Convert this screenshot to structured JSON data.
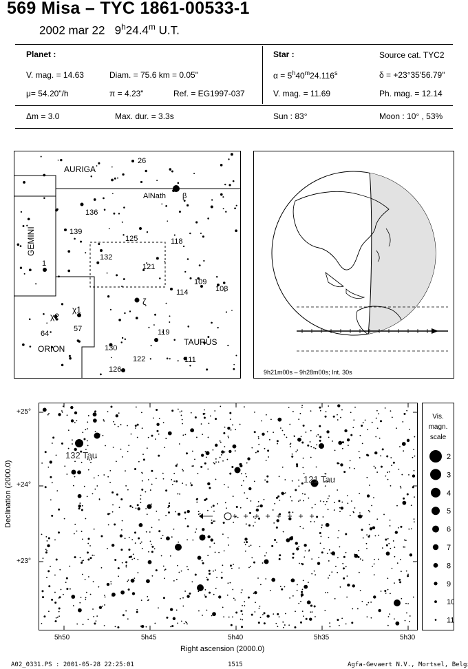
{
  "header": {
    "title": "569 Misa  –  TYC 1861-00533-1",
    "date": "2002 mar 22",
    "time_h": "9",
    "time_h_sup": "h",
    "time_m": "24.4",
    "time_m_sup": "m",
    "time_unit": "U.T."
  },
  "planet": {
    "heading": "Planet :",
    "vmag": "V. mag. = 14.63",
    "diam": "Diam. = 75.6 km = 0.05\"",
    "mu": "μ=  54.20\"/h",
    "pi": "π =  4.23\"",
    "ref": "Ref. = EG1997-037",
    "dm": "Δm = 3.0",
    "maxdur": "Max. dur. = 3.3s"
  },
  "star": {
    "heading": "Star :",
    "source": "Source cat.  TYC2",
    "alpha": "α =  5",
    "alpha_h": "h",
    "alpha_mid": "40",
    "alpha_m": "m",
    "alpha_s": "24.116",
    "alpha_ss": "s",
    "delta": "δ = +23°35'56.79\"",
    "vmag": "V. mag. = 11.69",
    "phmag": "Ph. mag. = 12.14",
    "sun": "Sun :  83°",
    "moon": "Moon :  10° , 53%"
  },
  "finder": {
    "constellations": [
      "AURIGA",
      "GEMINI",
      "ORION",
      "TAURUS"
    ],
    "labels": [
      "26",
      "AlNath",
      "β",
      "136",
      "139",
      "125",
      "118",
      "132",
      "121",
      "1",
      "109",
      "108",
      "114",
      "ζ",
      "χ2",
      "χ1",
      "64",
      "57",
      "119",
      "130",
      "122",
      "111",
      "126"
    ]
  },
  "globe": {
    "caption": "9h21m00s –  9h28m00s; Int. 30s"
  },
  "chart": {
    "dec_ticks": [
      "+25°",
      "+24°",
      "+23°"
    ],
    "ra_ticks": [
      "5h50",
      "5h45",
      "5h40",
      "5h35",
      "5h30"
    ],
    "ylabel": "Declination (2000.0)",
    "xlabel": "Right ascension (2000.0)",
    "star_labels": [
      "132 Tau",
      "121 Tau"
    ]
  },
  "scale": {
    "title_lines": [
      "Vis.",
      "magn.",
      "scale"
    ],
    "mags": [
      "2",
      "3",
      "4",
      "5",
      "6",
      "7",
      "8",
      "9",
      "10",
      "11"
    ]
  },
  "footer": {
    "file": "A02_0331.PS : 2001-05-28 22:25:01",
    "page": "1515",
    "org": "Agfa-Gevaert N.V., Mortsel, Belgium"
  }
}
